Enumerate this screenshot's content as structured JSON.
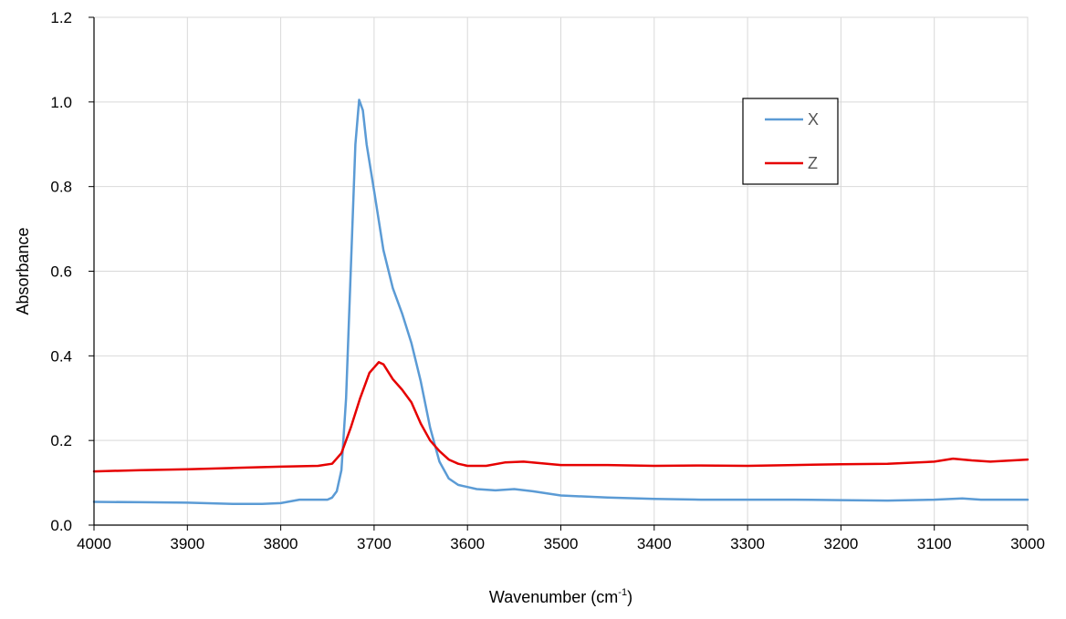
{
  "chart_data": {
    "type": "line",
    "title": "",
    "xlabel_main": "Wavenumber (cm",
    "xlabel_sup": "-1",
    "xlabel_close": ")",
    "ylabel": "Absorbance",
    "xlim": [
      4000,
      3000
    ],
    "ylim": [
      0,
      1.2
    ],
    "x_reversed": true,
    "grid": true,
    "legend_position": "top-right",
    "x_ticks": [
      4000,
      3900,
      3800,
      3700,
      3600,
      3500,
      3400,
      3300,
      3200,
      3100,
      3000
    ],
    "x_tick_labels": [
      "4000",
      "3900",
      "3800",
      "3700",
      "3600",
      "3500",
      "3400",
      "3300",
      "3200",
      "3100",
      "3000"
    ],
    "y_ticks": [
      0,
      0.2,
      0.4,
      0.6,
      0.8,
      1.0,
      1.2
    ],
    "y_tick_labels": [
      "0.0",
      "0.2",
      "0.4",
      "0.6",
      "0.8",
      "1.0",
      "1.2"
    ],
    "series": [
      {
        "name": "X",
        "color": "#5B9BD5",
        "points": [
          [
            4000,
            0.055
          ],
          [
            3950,
            0.054
          ],
          [
            3900,
            0.053
          ],
          [
            3850,
            0.05
          ],
          [
            3820,
            0.05
          ],
          [
            3800,
            0.052
          ],
          [
            3780,
            0.06
          ],
          [
            3760,
            0.06
          ],
          [
            3750,
            0.06
          ],
          [
            3745,
            0.065
          ],
          [
            3740,
            0.08
          ],
          [
            3735,
            0.13
          ],
          [
            3730,
            0.3
          ],
          [
            3725,
            0.6
          ],
          [
            3720,
            0.9
          ],
          [
            3716,
            1.005
          ],
          [
            3712,
            0.98
          ],
          [
            3708,
            0.9
          ],
          [
            3700,
            0.79
          ],
          [
            3690,
            0.65
          ],
          [
            3680,
            0.56
          ],
          [
            3670,
            0.5
          ],
          [
            3660,
            0.43
          ],
          [
            3650,
            0.34
          ],
          [
            3640,
            0.23
          ],
          [
            3630,
            0.15
          ],
          [
            3620,
            0.11
          ],
          [
            3610,
            0.095
          ],
          [
            3600,
            0.09
          ],
          [
            3590,
            0.085
          ],
          [
            3570,
            0.082
          ],
          [
            3550,
            0.085
          ],
          [
            3530,
            0.08
          ],
          [
            3500,
            0.07
          ],
          [
            3450,
            0.065
          ],
          [
            3400,
            0.062
          ],
          [
            3350,
            0.06
          ],
          [
            3300,
            0.06
          ],
          [
            3250,
            0.06
          ],
          [
            3200,
            0.059
          ],
          [
            3150,
            0.058
          ],
          [
            3100,
            0.06
          ],
          [
            3070,
            0.063
          ],
          [
            3050,
            0.06
          ],
          [
            3000,
            0.06
          ]
        ]
      },
      {
        "name": "Z",
        "color": "#E60000",
        "points": [
          [
            4000,
            0.127
          ],
          [
            3950,
            0.13
          ],
          [
            3900,
            0.132
          ],
          [
            3850,
            0.135
          ],
          [
            3800,
            0.138
          ],
          [
            3760,
            0.14
          ],
          [
            3745,
            0.145
          ],
          [
            3735,
            0.17
          ],
          [
            3725,
            0.23
          ],
          [
            3715,
            0.3
          ],
          [
            3705,
            0.36
          ],
          [
            3695,
            0.385
          ],
          [
            3690,
            0.38
          ],
          [
            3680,
            0.345
          ],
          [
            3670,
            0.32
          ],
          [
            3660,
            0.29
          ],
          [
            3650,
            0.24
          ],
          [
            3640,
            0.2
          ],
          [
            3630,
            0.175
          ],
          [
            3620,
            0.155
          ],
          [
            3610,
            0.145
          ],
          [
            3600,
            0.14
          ],
          [
            3580,
            0.14
          ],
          [
            3560,
            0.148
          ],
          [
            3540,
            0.15
          ],
          [
            3520,
            0.146
          ],
          [
            3500,
            0.142
          ],
          [
            3450,
            0.142
          ],
          [
            3400,
            0.14
          ],
          [
            3350,
            0.141
          ],
          [
            3300,
            0.14
          ],
          [
            3250,
            0.142
          ],
          [
            3200,
            0.144
          ],
          [
            3150,
            0.145
          ],
          [
            3100,
            0.15
          ],
          [
            3080,
            0.157
          ],
          [
            3060,
            0.153
          ],
          [
            3040,
            0.15
          ],
          [
            3000,
            0.155
          ]
        ]
      }
    ]
  }
}
